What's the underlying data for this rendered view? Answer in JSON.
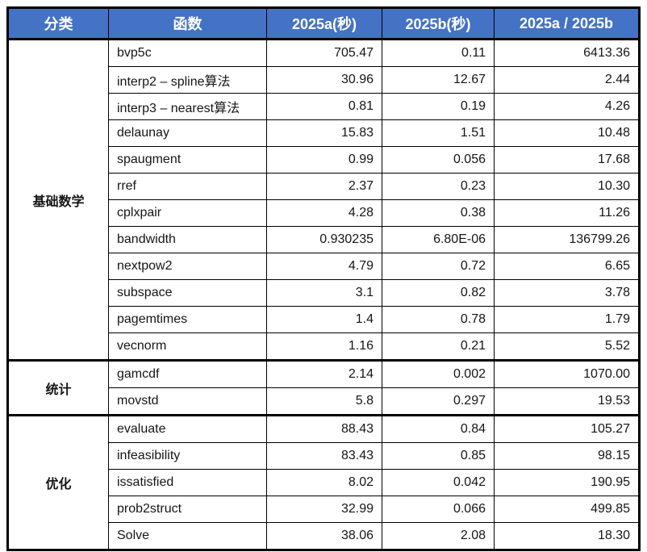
{
  "colors": {
    "header_bg": "#4472C4",
    "header_text": "#FFFFFF",
    "ratio_text": "#5B87D5",
    "border": "#000000",
    "body_bg": "#FFFFFF"
  },
  "chart_data": {
    "type": "table",
    "columns": [
      "分类",
      "函数",
      "2025a(秒)",
      "2025b(秒)",
      "2025a / 2025b"
    ],
    "groups": [
      {
        "category": "基础数学",
        "rows": [
          {
            "fn": "bvp5c",
            "a": "705.47",
            "b": "0.11",
            "ratio": "6413.36"
          },
          {
            "fn": "interp2 – spline算法",
            "a": "30.96",
            "b": "12.67",
            "ratio": "2.44"
          },
          {
            "fn": "interp3 – nearest算法",
            "a": "0.81",
            "b": "0.19",
            "ratio": "4.26"
          },
          {
            "fn": "delaunay",
            "a": "15.83",
            "b": "1.51",
            "ratio": "10.48"
          },
          {
            "fn": "spaugment",
            "a": "0.99",
            "b": "0.056",
            "ratio": "17.68"
          },
          {
            "fn": "rref",
            "a": "2.37",
            "b": "0.23",
            "ratio": "10.30"
          },
          {
            "fn": "cplxpair",
            "a": "4.28",
            "b": "0.38",
            "ratio": "11.26"
          },
          {
            "fn": "bandwidth",
            "a": "0.930235",
            "b": "6.80E-06",
            "ratio": "136799.26"
          },
          {
            "fn": "nextpow2",
            "a": "4.79",
            "b": "0.72",
            "ratio": "6.65"
          },
          {
            "fn": "subspace",
            "a": "3.1",
            "b": "0.82",
            "ratio": "3.78"
          },
          {
            "fn": "pagemtimes",
            "a": "1.4",
            "b": "0.78",
            "ratio": "1.79"
          },
          {
            "fn": "vecnorm",
            "a": "1.16",
            "b": "0.21",
            "ratio": "5.52"
          }
        ]
      },
      {
        "category": "统计",
        "rows": [
          {
            "fn": "gamcdf",
            "a": "2.14",
            "b": "0.002",
            "ratio": "1070.00"
          },
          {
            "fn": "movstd",
            "a": "5.8",
            "b": "0.297",
            "ratio": "19.53"
          }
        ]
      },
      {
        "category": "优化",
        "rows": [
          {
            "fn": "evaluate",
            "a": "88.43",
            "b": "0.84",
            "ratio": "105.27"
          },
          {
            "fn": "infeasibility",
            "a": "83.43",
            "b": "0.85",
            "ratio": "98.15"
          },
          {
            "fn": "issatisfied",
            "a": "8.02",
            "b": "0.042",
            "ratio": "190.95"
          },
          {
            "fn": "prob2struct",
            "a": "32.99",
            "b": "0.066",
            "ratio": "499.85"
          },
          {
            "fn": "Solve",
            "a": "38.06",
            "b": "2.08",
            "ratio": "18.30"
          }
        ]
      }
    ]
  }
}
